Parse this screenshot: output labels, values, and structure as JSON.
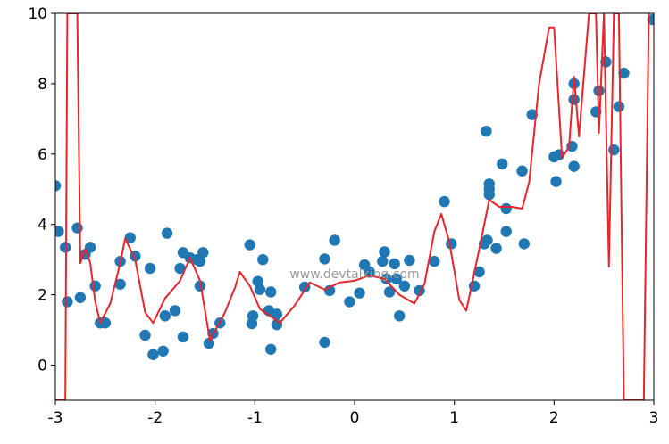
{
  "watermark": "www.devtalking.com",
  "chart_data": {
    "type": "scatter",
    "title": "",
    "xlabel": "",
    "ylabel": "",
    "xlim": [
      -3,
      3
    ],
    "ylim": [
      -1,
      10
    ],
    "grid": false,
    "x_ticks": [
      -3,
      -2,
      -1,
      0,
      1,
      2,
      3
    ],
    "x_tick_labels": [
      "-3",
      "-2",
      "-1",
      "0",
      "1",
      "2",
      "3"
    ],
    "y_ticks": [
      0,
      2,
      4,
      6,
      8,
      10
    ],
    "y_tick_labels": [
      "0",
      "2",
      "4",
      "6",
      "8",
      "10"
    ],
    "series": [
      {
        "kind": "scatter",
        "color": "#1f77b4",
        "points": [
          [
            -3.0,
            5.1
          ],
          [
            -2.97,
            3.8
          ],
          [
            -2.9,
            3.35
          ],
          [
            -2.88,
            1.8
          ],
          [
            -2.78,
            3.9
          ],
          [
            -2.75,
            1.92
          ],
          [
            -2.7,
            3.15
          ],
          [
            -2.65,
            3.35
          ],
          [
            -2.6,
            2.25
          ],
          [
            -2.55,
            1.2
          ],
          [
            -2.5,
            1.2
          ],
          [
            -2.35,
            2.95
          ],
          [
            -2.35,
            2.3
          ],
          [
            -2.25,
            3.62
          ],
          [
            -2.2,
            3.1
          ],
          [
            -2.1,
            0.85
          ],
          [
            -2.05,
            2.75
          ],
          [
            -2.02,
            0.3
          ],
          [
            -1.92,
            0.4
          ],
          [
            -1.9,
            1.4
          ],
          [
            -1.88,
            3.75
          ],
          [
            -1.8,
            1.55
          ],
          [
            -1.75,
            2.75
          ],
          [
            -1.72,
            3.2
          ],
          [
            -1.72,
            0.8
          ],
          [
            -1.65,
            3.05
          ],
          [
            -1.58,
            3.0
          ],
          [
            -1.55,
            2.95
          ],
          [
            -1.55,
            2.25
          ],
          [
            -1.52,
            3.2
          ],
          [
            -1.46,
            0.62
          ],
          [
            -1.42,
            0.9
          ],
          [
            -1.35,
            1.2
          ],
          [
            -1.05,
            3.42
          ],
          [
            -1.03,
            1.18
          ],
          [
            -1.02,
            1.4
          ],
          [
            -0.97,
            2.38
          ],
          [
            -0.95,
            2.15
          ],
          [
            -0.92,
            3.0
          ],
          [
            -0.86,
            1.55
          ],
          [
            -0.84,
            0.45
          ],
          [
            -0.84,
            2.08
          ],
          [
            -0.78,
            1.15
          ],
          [
            -0.78,
            1.45
          ],
          [
            -0.5,
            2.22
          ],
          [
            -0.3,
            0.65
          ],
          [
            -0.3,
            3.02
          ],
          [
            -0.25,
            2.12
          ],
          [
            -0.2,
            3.55
          ],
          [
            -0.05,
            1.8
          ],
          [
            0.05,
            2.05
          ],
          [
            0.1,
            2.85
          ],
          [
            0.15,
            2.65
          ],
          [
            0.28,
            2.95
          ],
          [
            0.3,
            3.22
          ],
          [
            0.32,
            2.45
          ],
          [
            0.35,
            2.08
          ],
          [
            0.4,
            2.88
          ],
          [
            0.42,
            2.45
          ],
          [
            0.45,
            1.4
          ],
          [
            0.5,
            2.25
          ],
          [
            0.55,
            2.98
          ],
          [
            0.65,
            2.12
          ],
          [
            0.8,
            2.95
          ],
          [
            0.9,
            4.65
          ],
          [
            0.97,
            3.45
          ],
          [
            1.2,
            2.25
          ],
          [
            1.25,
            2.65
          ],
          [
            1.3,
            3.45
          ],
          [
            1.32,
            6.65
          ],
          [
            1.33,
            3.55
          ],
          [
            1.35,
            5.0
          ],
          [
            1.35,
            5.15
          ],
          [
            1.35,
            4.85
          ],
          [
            1.42,
            3.32
          ],
          [
            1.48,
            5.72
          ],
          [
            1.52,
            3.8
          ],
          [
            1.52,
            4.45
          ],
          [
            1.68,
            5.52
          ],
          [
            1.7,
            3.45
          ],
          [
            1.78,
            7.12
          ],
          [
            2.0,
            5.92
          ],
          [
            2.02,
            5.22
          ],
          [
            2.05,
            5.98
          ],
          [
            2.18,
            6.22
          ],
          [
            2.2,
            8.0
          ],
          [
            2.2,
            5.65
          ],
          [
            2.2,
            7.55
          ],
          [
            2.42,
            7.2
          ],
          [
            2.45,
            7.8
          ],
          [
            2.52,
            8.62
          ],
          [
            2.6,
            6.12
          ],
          [
            2.65,
            7.35
          ],
          [
            2.7,
            8.3
          ],
          [
            2.99,
            9.82
          ]
        ]
      },
      {
        "kind": "line",
        "color": "#e5262d",
        "points": [
          [
            -3.0,
            -1.0
          ],
          [
            -2.9,
            -1.0
          ],
          [
            -2.88,
            10.0
          ],
          [
            -2.78,
            10.0
          ],
          [
            -2.75,
            2.9
          ],
          [
            -2.7,
            3.3
          ],
          [
            -2.65,
            2.9
          ],
          [
            -2.6,
            1.8
          ],
          [
            -2.55,
            1.2
          ],
          [
            -2.45,
            1.75
          ],
          [
            -2.35,
            2.9
          ],
          [
            -2.3,
            3.6
          ],
          [
            -2.2,
            3.0
          ],
          [
            -2.1,
            1.5
          ],
          [
            -2.02,
            1.2
          ],
          [
            -1.9,
            1.9
          ],
          [
            -1.75,
            2.4
          ],
          [
            -1.65,
            3.05
          ],
          [
            -1.55,
            2.4
          ],
          [
            -1.45,
            0.7
          ],
          [
            -1.3,
            1.5
          ],
          [
            -1.2,
            2.2
          ],
          [
            -1.15,
            2.65
          ],
          [
            -1.05,
            2.25
          ],
          [
            -0.95,
            1.6
          ],
          [
            -0.85,
            1.4
          ],
          [
            -0.75,
            1.2
          ],
          [
            -0.6,
            1.7
          ],
          [
            -0.45,
            2.35
          ],
          [
            -0.3,
            2.15
          ],
          [
            -0.15,
            2.35
          ],
          [
            0.0,
            2.4
          ],
          [
            0.15,
            2.55
          ],
          [
            0.3,
            2.45
          ],
          [
            0.45,
            2.0
          ],
          [
            0.6,
            1.75
          ],
          [
            0.7,
            2.3
          ],
          [
            0.8,
            3.8
          ],
          [
            0.87,
            4.3
          ],
          [
            0.95,
            3.5
          ],
          [
            1.05,
            1.85
          ],
          [
            1.12,
            1.55
          ],
          [
            1.25,
            3.3
          ],
          [
            1.35,
            4.7
          ],
          [
            1.45,
            4.5
          ],
          [
            1.58,
            4.5
          ],
          [
            1.68,
            4.45
          ],
          [
            1.75,
            5.2
          ],
          [
            1.85,
            8.0
          ],
          [
            1.95,
            9.6
          ],
          [
            2.0,
            9.6
          ],
          [
            2.08,
            5.9
          ],
          [
            2.15,
            6.2
          ],
          [
            2.2,
            8.2
          ],
          [
            2.25,
            6.5
          ],
          [
            2.35,
            10.0
          ],
          [
            2.42,
            10.0
          ],
          [
            2.45,
            6.6
          ],
          [
            2.5,
            10.0
          ],
          [
            2.55,
            2.8
          ],
          [
            2.6,
            10.0
          ],
          [
            2.65,
            10.0
          ],
          [
            2.7,
            -1.0
          ],
          [
            2.9,
            -1.0
          ],
          [
            2.95,
            10.0
          ]
        ]
      }
    ]
  }
}
